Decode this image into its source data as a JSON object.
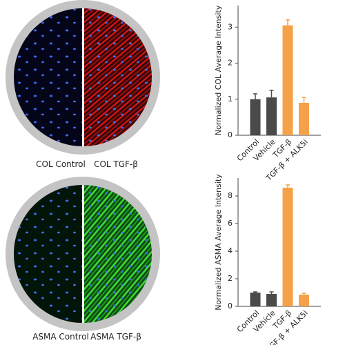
{
  "images": [
    {
      "left_label": "COL Control",
      "right_label": "COL TGF-β"
    },
    {
      "left_label": "ASMA Control",
      "right_label": "ASMA TGF-β"
    }
  ],
  "chart_data": [
    {
      "type": "bar",
      "ylabel": "Normalized COL Average Intensity",
      "categories": [
        "Control",
        "Vehicle",
        "TGF-β",
        "TGF-β + ALK5i"
      ],
      "values": [
        1.0,
        1.05,
        3.05,
        0.9
      ],
      "errors": [
        0.15,
        0.2,
        0.15,
        0.15
      ],
      "colors": [
        "#4a4a4a",
        "#4a4a4a",
        "#f4a14a",
        "#f4a14a"
      ],
      "ylim": [
        0,
        3.6
      ],
      "yticks": [
        0,
        1,
        2,
        3
      ]
    },
    {
      "type": "bar",
      "ylabel": "Normalized ASMA Average Intensity",
      "categories": [
        "Control",
        "Vehicle",
        "TGF-β",
        "TGF-β + ALK5i"
      ],
      "values": [
        1.0,
        0.9,
        8.6,
        0.85
      ],
      "errors": [
        0.05,
        0.15,
        0.2,
        0.1
      ],
      "colors": [
        "#4a4a4a",
        "#4a4a4a",
        "#f4a14a",
        "#f4a14a"
      ],
      "ylim": [
        0,
        9.3
      ],
      "yticks": [
        0,
        2,
        4,
        6,
        8
      ]
    }
  ]
}
